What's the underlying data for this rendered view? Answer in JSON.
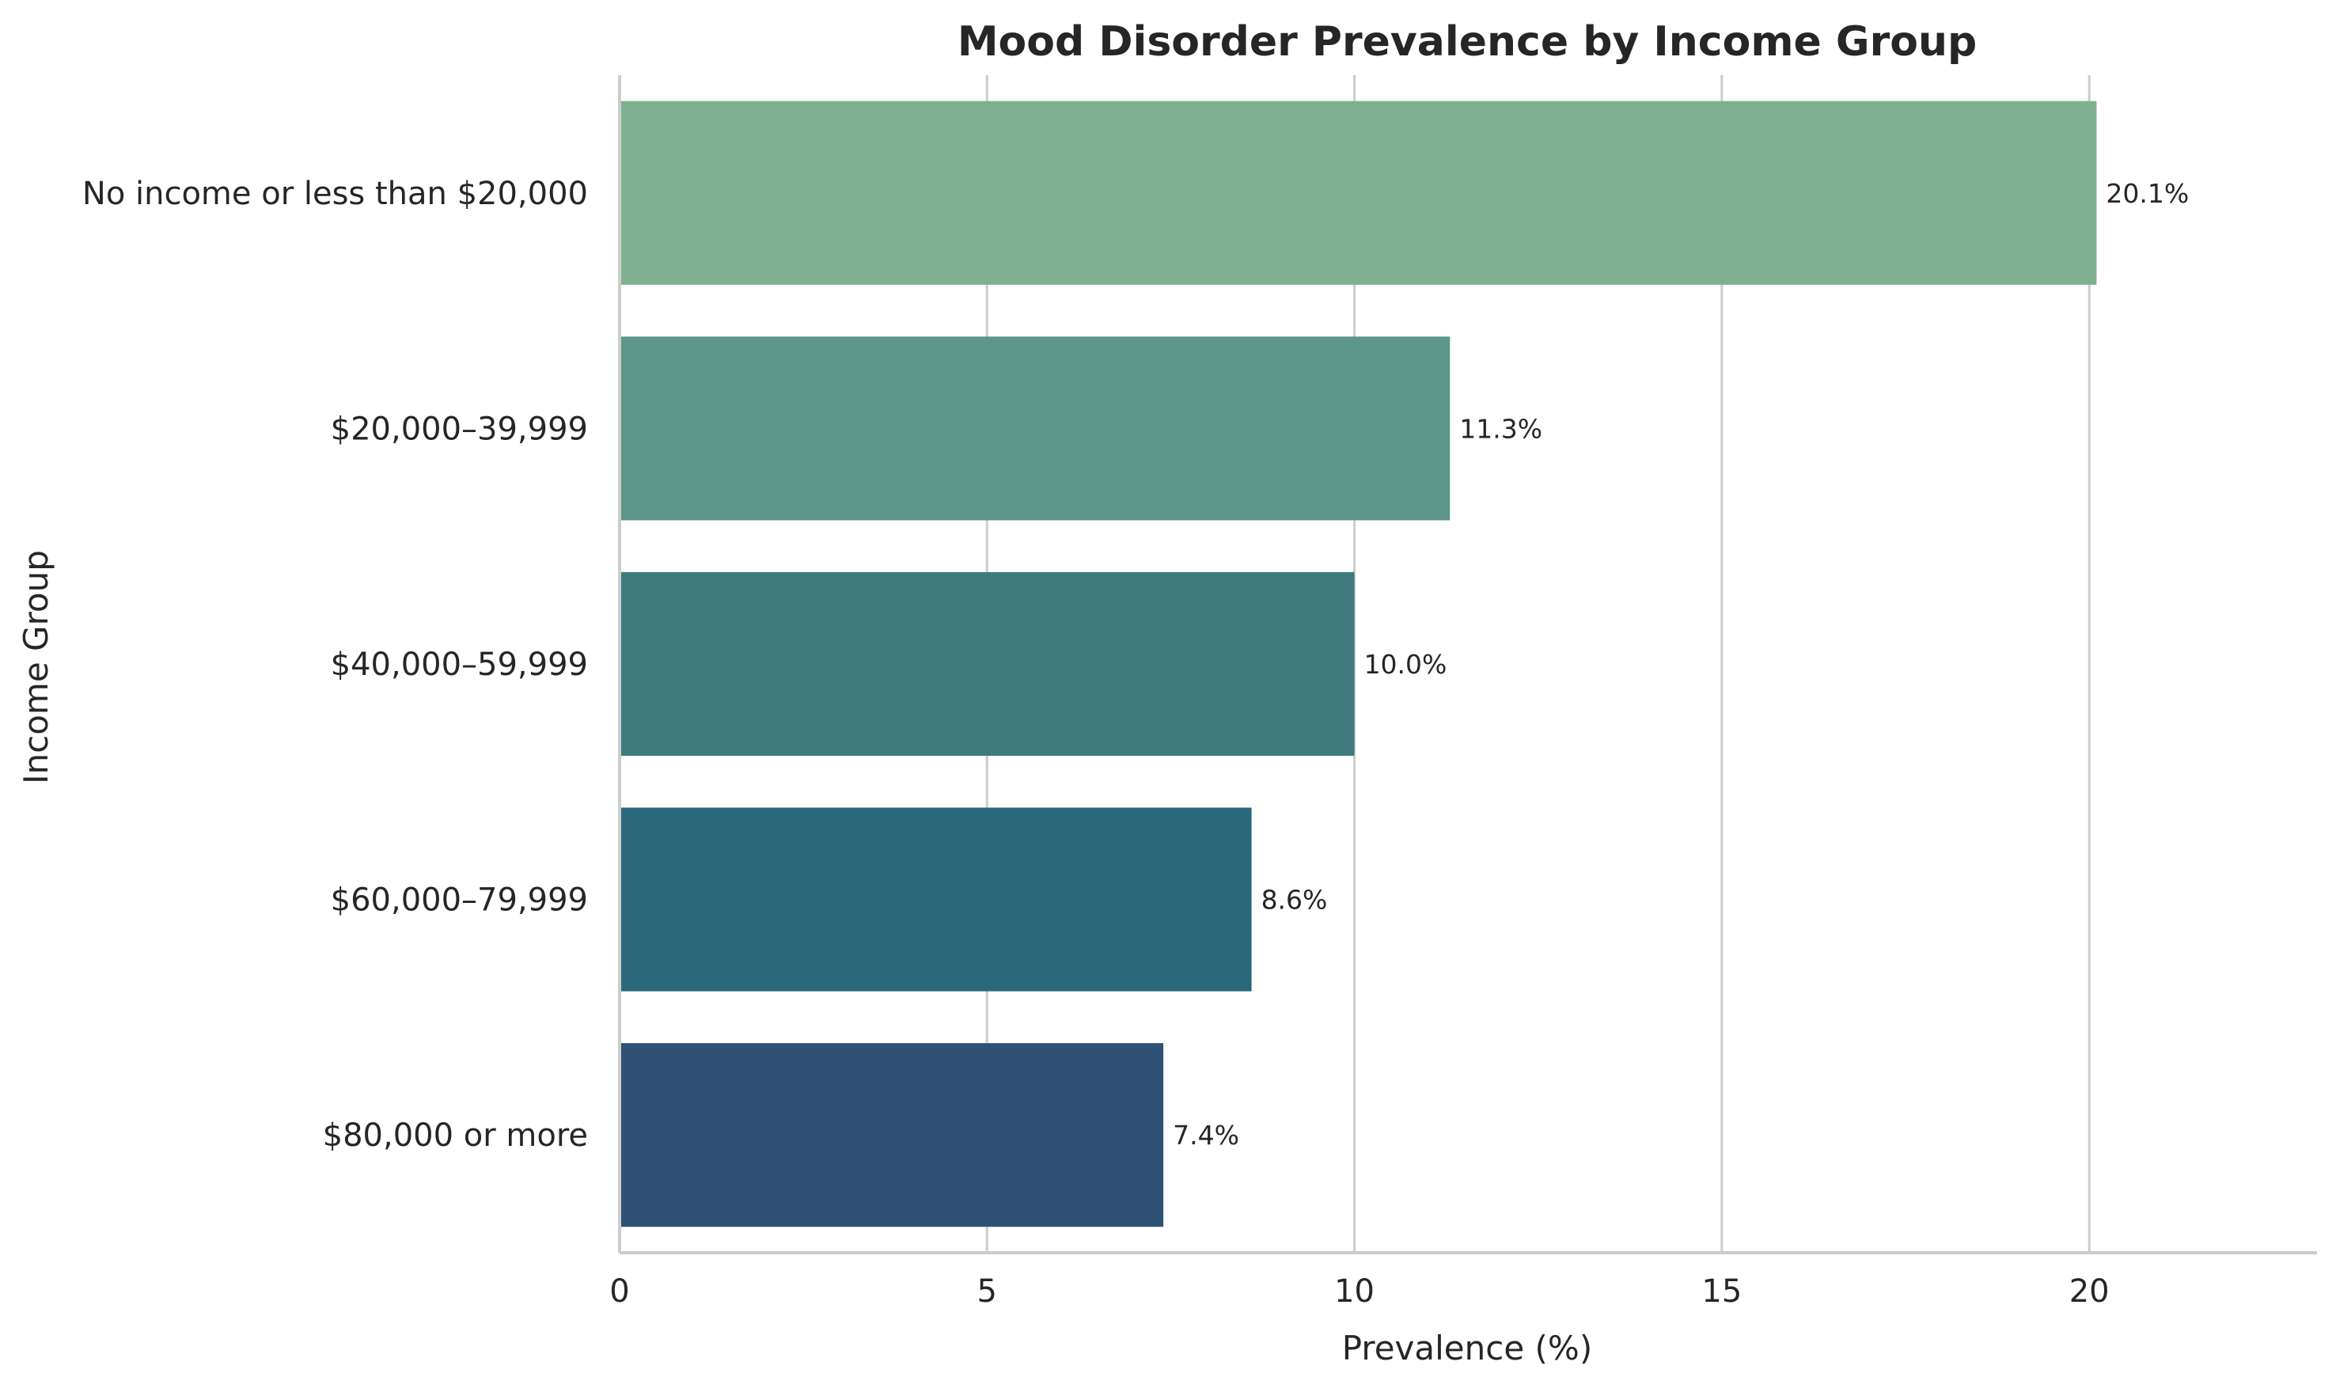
{
  "chart_data": {
    "type": "bar",
    "orientation": "horizontal",
    "title": "Mood Disorder Prevalence by Income Group",
    "xlabel": "Prevalence (%)",
    "ylabel": "Income Group",
    "xlim": [
      0,
      23.1
    ],
    "xticks": [
      0,
      5,
      10,
      15,
      20
    ],
    "grid": "vertical",
    "categories": [
      "No income or less than $20,000",
      "$20,000–39,999",
      "$40,000–59,999",
      "$60,000–79,999",
      "$80,000 or more"
    ],
    "values": [
      20.1,
      11.3,
      10.0,
      8.6,
      7.4
    ],
    "data_labels": [
      "20.1%",
      "11.3%",
      "10.0%",
      "8.6%",
      "7.4%"
    ],
    "colors": [
      "#7faf91",
      "#5c9589",
      "#3e7a7e",
      "#2c687c",
      "#2f5175"
    ]
  }
}
